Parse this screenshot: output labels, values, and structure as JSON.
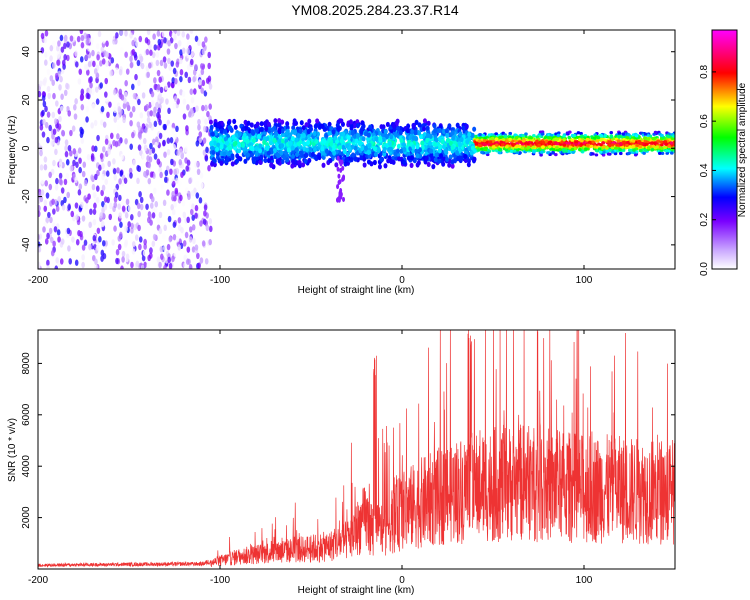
{
  "title": "YM08.2025.284.23.37.R14",
  "chart_data": [
    {
      "type": "heatmap",
      "xlabel": "Height of straight line (km)",
      "ylabel": "Frequency (Hz)",
      "xlim": [
        -200,
        150
      ],
      "ylim": [
        -50,
        49
      ],
      "xticks": [
        -200,
        -100,
        0,
        100
      ],
      "yticks": [
        40,
        20,
        0,
        -20,
        -40
      ],
      "colorbar": {
        "label": "Normalized spectral amplitude",
        "range": [
          0,
          0.97
        ],
        "ticks": [
          "0.0",
          "0.2",
          "0.4",
          "0.6",
          "0.8"
        ],
        "tick_values": [
          0,
          0.2,
          0.4,
          0.6,
          0.8
        ],
        "colormap": [
          "#ffffff",
          "#8a2be2",
          "#0000ff",
          "#00ffff",
          "#00ff00",
          "#ffff00",
          "#ff0000",
          "#ff00ff"
        ]
      },
      "regions": [
        {
          "x_range": [
            -200,
            -105
          ],
          "description_values": {
            "f_range": [
              -50,
              49
            ],
            "amplitude": [
              0.0,
              0.15
            ]
          }
        },
        {
          "x_range": [
            -105,
            40
          ],
          "description_values": {
            "f_range": [
              -12,
              15
            ],
            "amplitude": [
              0.05,
              0.45
            ]
          }
        },
        {
          "x_range": [
            40,
            150
          ],
          "description_values": {
            "f_range": [
              -3,
              7
            ],
            "amplitude": [
              0.3,
              0.97
            ]
          }
        }
      ]
    },
    {
      "type": "line",
      "xlabel": "Height of straight line (km)",
      "ylabel": "SNR (10 * v/v)",
      "xlim": [
        -200,
        150
      ],
      "ylim": [
        0,
        9300
      ],
      "xticks": [
        -200,
        -100,
        0,
        100
      ],
      "yticks": [
        2000,
        4000,
        6000,
        8000
      ],
      "color": "#ee3333",
      "series": [
        {
          "x": [
            -200,
            -150,
            -110,
            -100,
            -90,
            -80,
            -70,
            -60,
            -50,
            -40,
            -30,
            -20,
            -15,
            -10,
            0,
            10,
            20,
            30,
            40,
            50,
            60,
            70,
            80,
            90,
            100,
            110,
            120,
            130,
            140,
            150
          ],
          "values": [
            150,
            180,
            200,
            400,
            600,
            700,
            850,
            900,
            1000,
            1100,
            1400,
            2500,
            1800,
            2000,
            2800,
            3200,
            3500,
            3800,
            4000,
            4100,
            4200,
            4200,
            4100,
            4000,
            3900,
            3900,
            3850,
            3800,
            3800,
            3800
          ]
        }
      ]
    }
  ]
}
